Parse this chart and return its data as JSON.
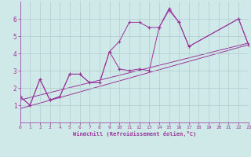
{
  "bg_color": "#cfe8e8",
  "line_color": "#993399",
  "grid_color": "#b0cccc",
  "xlabel": "Windchill (Refroidissement éolien,°C)",
  "xlim": [
    0,
    23
  ],
  "ylim": [
    0,
    7
  ],
  "xticks": [
    0,
    1,
    2,
    3,
    4,
    5,
    6,
    7,
    8,
    9,
    10,
    11,
    12,
    13,
    14,
    15,
    16,
    17,
    18,
    19,
    20,
    21,
    22,
    23
  ],
  "yticks": [
    1,
    2,
    3,
    4,
    5,
    6
  ],
  "series1_x": [
    0,
    1,
    2,
    3,
    4,
    5,
    6,
    7,
    8,
    9,
    10,
    11,
    12,
    13,
    14,
    15,
    16,
    17,
    22,
    23
  ],
  "series1_y": [
    1.5,
    1.0,
    2.5,
    1.3,
    1.5,
    2.8,
    2.8,
    2.3,
    2.3,
    4.1,
    4.7,
    5.8,
    5.8,
    5.5,
    5.5,
    6.6,
    5.8,
    4.4,
    6.0,
    4.5
  ],
  "series2_x": [
    0,
    1,
    2,
    3,
    4,
    5,
    6,
    7,
    8,
    9,
    10,
    11,
    12,
    13,
    14,
    15,
    16,
    17,
    22,
    23
  ],
  "series2_y": [
    1.5,
    1.0,
    2.5,
    1.3,
    1.5,
    2.8,
    2.8,
    2.3,
    2.3,
    4.1,
    3.1,
    3.0,
    3.1,
    3.0,
    5.5,
    6.5,
    5.8,
    4.4,
    6.0,
    4.5
  ],
  "line1_x": [
    0,
    23
  ],
  "line1_y": [
    1.3,
    4.6
  ],
  "line2_x": [
    0,
    23
  ],
  "line2_y": [
    0.8,
    4.5
  ]
}
